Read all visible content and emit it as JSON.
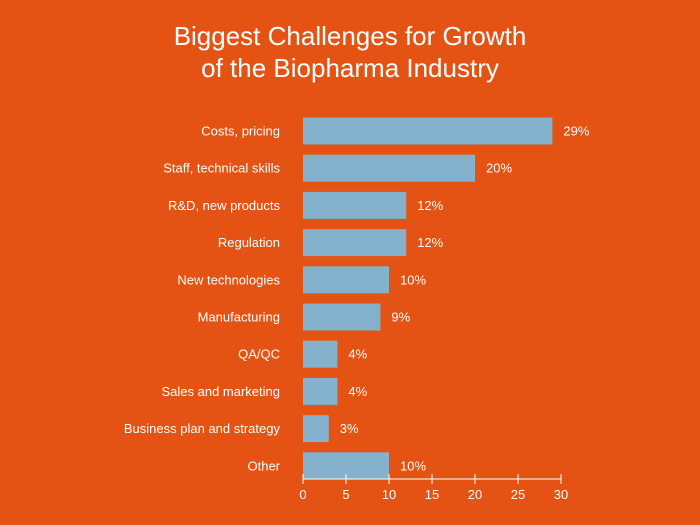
{
  "chart_data": {
    "type": "bar",
    "orientation": "horizontal",
    "title_lines": [
      "Biggest Challenges for Growth",
      "of the Biopharma Industry"
    ],
    "categories": [
      "Costs, pricing",
      "Staff, technical skills",
      "R&D, new products",
      "Regulation",
      "New technologies",
      "Manufacturing",
      "QA/QC",
      "Sales and marketing",
      "Business plan and strategy",
      "Other"
    ],
    "values": [
      29,
      20,
      12,
      12,
      10,
      9,
      4,
      4,
      3,
      10
    ],
    "value_labels": [
      "29%",
      "20%",
      "12%",
      "12%",
      "10%",
      "9%",
      "4%",
      "4%",
      "3%",
      "10%"
    ],
    "xlim": [
      0,
      30
    ],
    "xticks": [
      0,
      5,
      10,
      15,
      20,
      25,
      30
    ],
    "grid": false,
    "legend": "none",
    "colors": {
      "background": "#e55314",
      "bar": "#84b1cb",
      "text": "#ffffff"
    }
  }
}
